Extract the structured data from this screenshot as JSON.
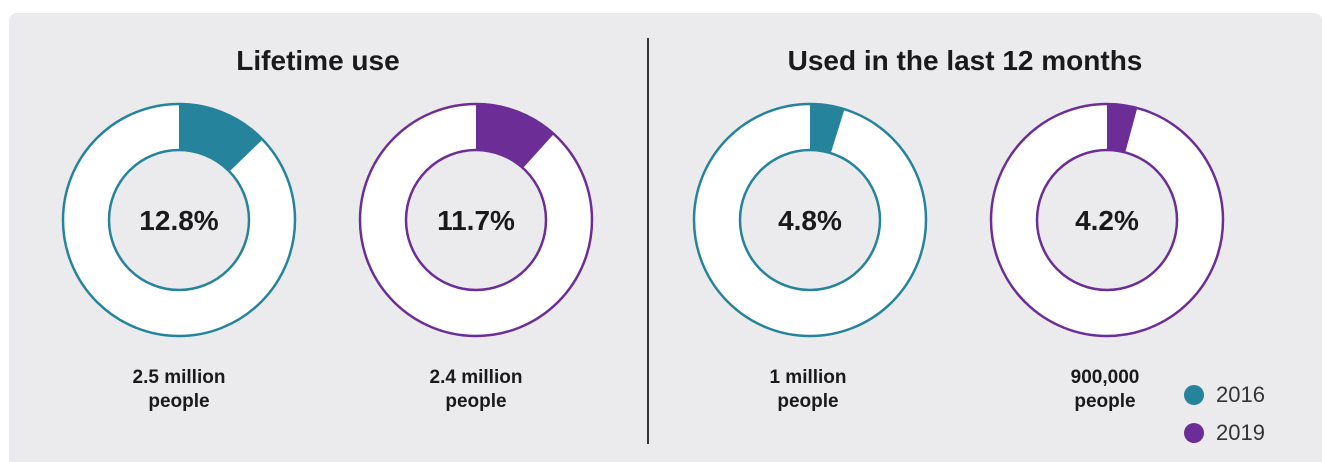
{
  "colors": {
    "year_2016": "#25839b",
    "year_2019": "#6c2e96",
    "background": "#ebebee"
  },
  "sections": {
    "left_title": "Lifetime use",
    "right_title": "Used in the last 12 months"
  },
  "legend": {
    "items": [
      {
        "label": "2016",
        "color": "#25839b"
      },
      {
        "label": "2019",
        "color": "#6c2e96"
      }
    ]
  },
  "chart_data": [
    {
      "type": "pie",
      "title": "Lifetime use",
      "charts": [
        {
          "series": "2016",
          "value": 12.8,
          "label": "12.8%",
          "people_line1": "2.5 million",
          "people_line2": "people",
          "color": "#25839b"
        },
        {
          "series": "2019",
          "value": 11.7,
          "label": "11.7%",
          "people_line1": "2.4 million",
          "people_line2": "people",
          "color": "#6c2e96"
        }
      ]
    },
    {
      "type": "pie",
      "title": "Used in the last 12 months",
      "charts": [
        {
          "series": "2016",
          "value": 4.8,
          "label": "4.8%",
          "people_line1": "1 million",
          "people_line2": "people",
          "color": "#25839b"
        },
        {
          "series": "2019",
          "value": 4.2,
          "label": "4.2%",
          "people_line1": "900,000",
          "people_line2": "people",
          "color": "#6c2e96"
        }
      ]
    }
  ]
}
